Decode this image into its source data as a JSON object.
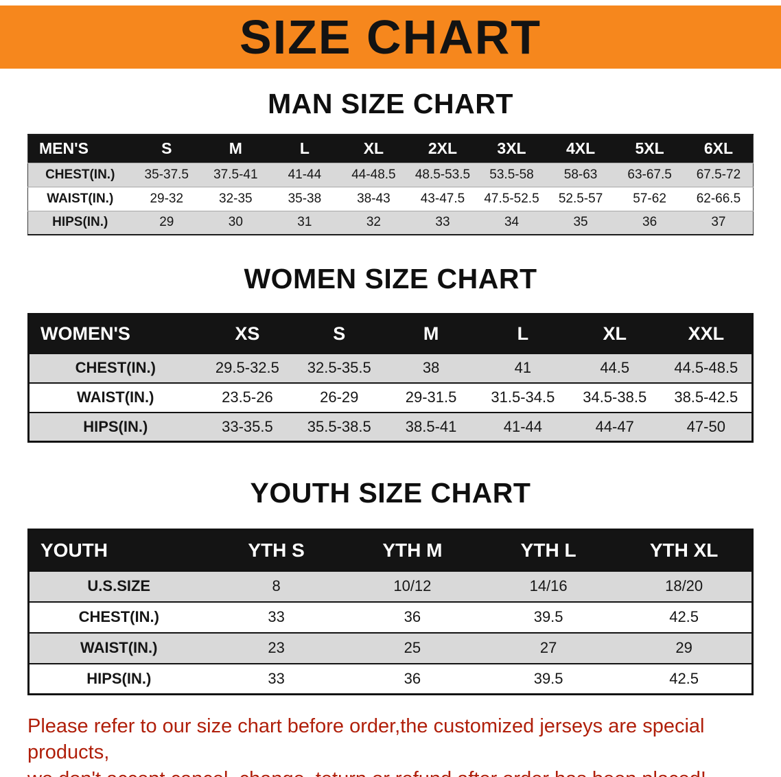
{
  "banner": {
    "title": "SIZE CHART"
  },
  "men": {
    "heading": "MAN SIZE CHART",
    "corner": "MEN'S",
    "columns": [
      "S",
      "M",
      "L",
      "XL",
      "2XL",
      "3XL",
      "4XL",
      "5XL",
      "6XL"
    ],
    "rows": [
      {
        "label": "CHEST(IN.)",
        "values": [
          "35-37.5",
          "37.5-41",
          "41-44",
          "44-48.5",
          "48.5-53.5",
          "53.5-58",
          "58-63",
          "63-67.5",
          "67.5-72"
        ]
      },
      {
        "label": "WAIST(IN.)",
        "values": [
          "29-32",
          "32-35",
          "35-38",
          "38-43",
          "43-47.5",
          "47.5-52.5",
          "52.5-57",
          "57-62",
          "62-66.5"
        ]
      },
      {
        "label": "HIPS(IN.)",
        "values": [
          "29",
          "30",
          "31",
          "32",
          "33",
          "34",
          "35",
          "36",
          "37"
        ]
      }
    ]
  },
  "women": {
    "heading": "WOMEN SIZE CHART",
    "corner": "WOMEN'S",
    "columns": [
      "XS",
      "S",
      "M",
      "L",
      "XL",
      "XXL"
    ],
    "rows": [
      {
        "label": "CHEST(IN.)",
        "values": [
          "29.5-32.5",
          "32.5-35.5",
          "38",
          "41",
          "44.5",
          "44.5-48.5"
        ]
      },
      {
        "label": "WAIST(IN.)",
        "values": [
          "23.5-26",
          "26-29",
          "29-31.5",
          "31.5-34.5",
          "34.5-38.5",
          "38.5-42.5"
        ]
      },
      {
        "label": "HIPS(IN.)",
        "values": [
          "33-35.5",
          "35.5-38.5",
          "38.5-41",
          "41-44",
          "44-47",
          "47-50"
        ]
      }
    ]
  },
  "youth": {
    "heading": "YOUTH SIZE CHART",
    "corner": "YOUTH",
    "columns": [
      "YTH S",
      "YTH M",
      "YTH L",
      "YTH XL"
    ],
    "rows": [
      {
        "label": "U.S.SIZE",
        "values": [
          "8",
          "10/12",
          "14/16",
          "18/20"
        ]
      },
      {
        "label": "CHEST(IN.)",
        "values": [
          "33",
          "36",
          "39.5",
          "42.5"
        ]
      },
      {
        "label": "WAIST(IN.)",
        "values": [
          "23",
          "25",
          "27",
          "29"
        ]
      },
      {
        "label": "HIPS(IN.)",
        "values": [
          "33",
          "36",
          "39.5",
          "42.5"
        ]
      }
    ]
  },
  "notice": {
    "line1": "Please refer to our size chart before order,the customized jerseys are special products,",
    "line2": "we don't accept cancel, change, teturn or refund after order has been placed!"
  },
  "colors": {
    "banner_bg": "#f6871d",
    "header_bg": "#141414",
    "row_alt_bg": "#d9d9d9",
    "notice_text": "#b01f0a"
  }
}
